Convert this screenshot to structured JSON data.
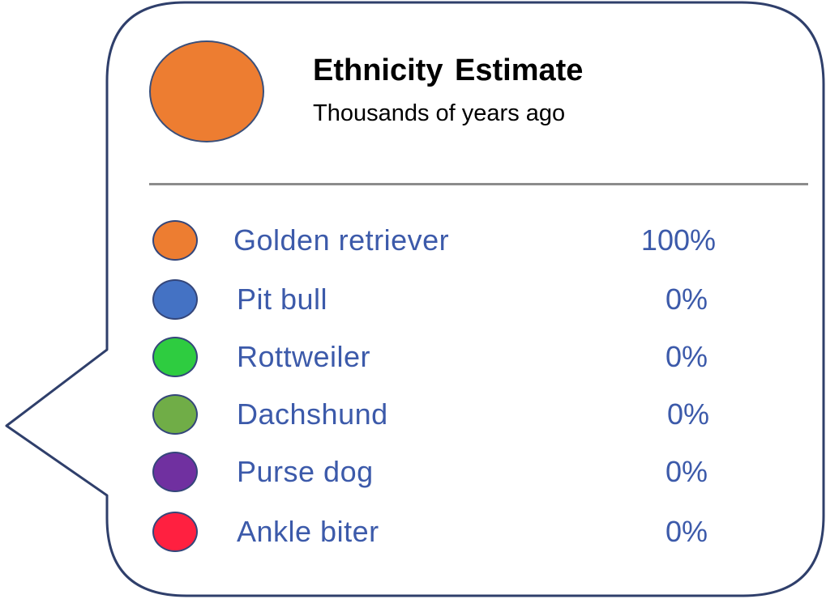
{
  "header": {
    "title": "Ethnicity Estimate",
    "subtitle": "Thousands of years ago",
    "dot_color": "#ED7D31"
  },
  "breeds": [
    {
      "label": "Golden retriever",
      "value": "100%",
      "color": "#ED7D31"
    },
    {
      "label": "Pit bull",
      "value": "0%",
      "color": "#4472C4"
    },
    {
      "label": "Rottweiler",
      "value": "0%",
      "color": "#2ECC40"
    },
    {
      "label": "Dachshund",
      "value": "0%",
      "color": "#70AD47"
    },
    {
      "label": "Purse dog",
      "value": "0%",
      "color": "#7030A0"
    },
    {
      "label": "Ankle biter",
      "value": "0%",
      "color": "#FF2040"
    }
  ],
  "colors": {
    "bubble_border": "#2F3F6B",
    "text_accent": "#3C5AAA",
    "divider": "#8C8C8C"
  }
}
